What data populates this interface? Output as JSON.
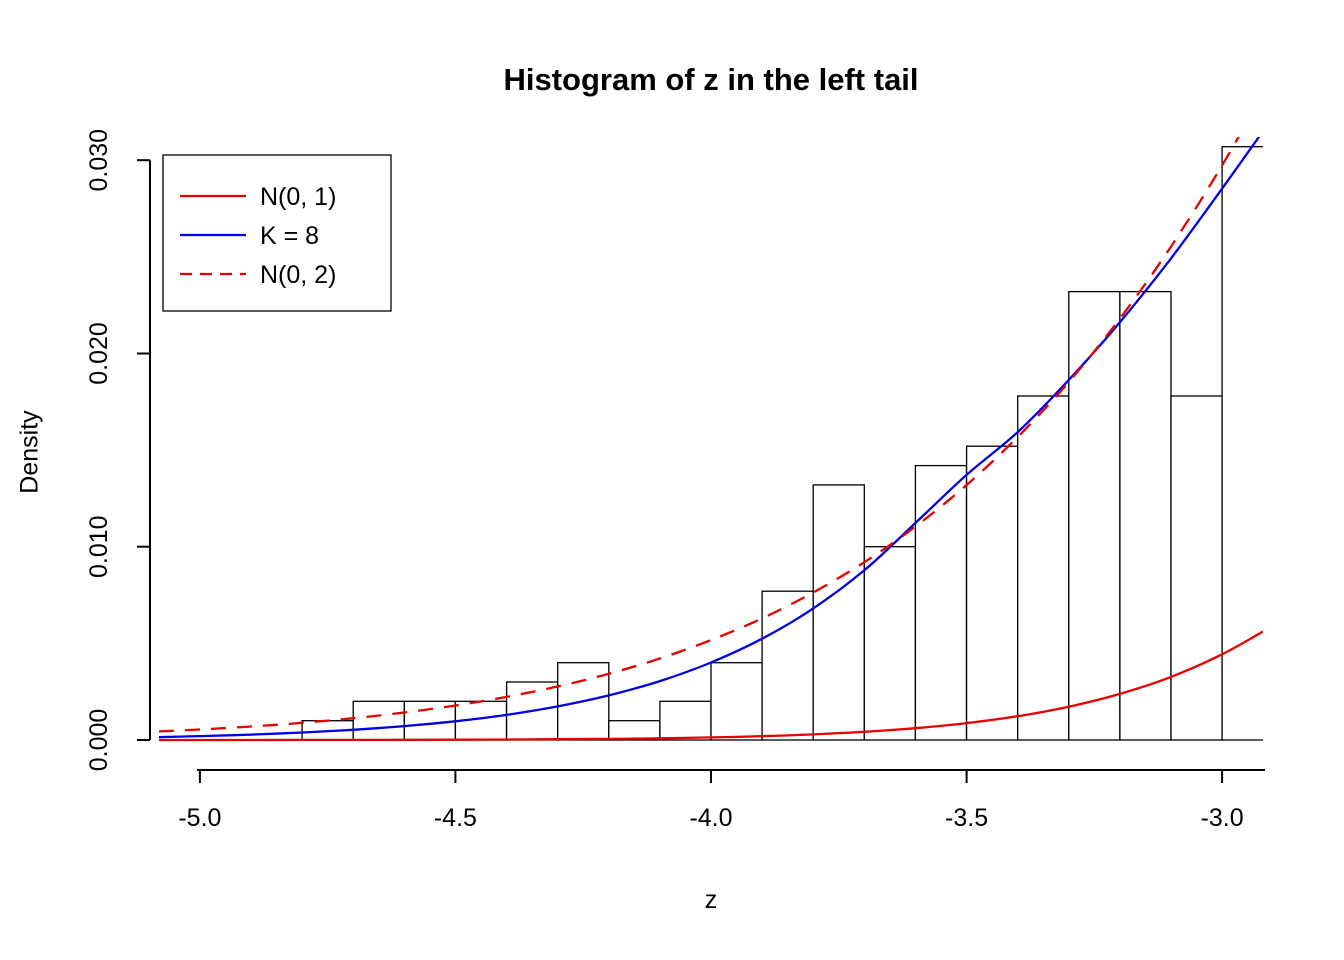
{
  "chart_data": {
    "type": "bar",
    "subtype": "histogram-with-density-curves",
    "title": "Histogram of z in the left tail",
    "xlabel": "z",
    "ylabel": "Density",
    "xlim": [
      -5.08,
      -2.92
    ],
    "ylim": [
      0,
      0.0312
    ],
    "x_ticks": [
      -5.0,
      -4.5,
      -4.0,
      -3.5,
      -3.0
    ],
    "x_tick_labels": [
      "-5.0",
      "-4.5",
      "-4.0",
      "-3.5",
      "-3.0"
    ],
    "y_ticks": [
      0.0,
      0.01,
      0.02,
      0.03
    ],
    "y_tick_labels": [
      "0.000",
      "0.010",
      "0.020",
      "0.030"
    ],
    "grid": "off",
    "histogram": {
      "bin_start": -4.8,
      "bin_width": 0.1,
      "densities": [
        0.001,
        0.002,
        0.002,
        0.002,
        0.003,
        0.004,
        0.001,
        0.002,
        0.004,
        0.0077,
        0.0132,
        0.01,
        0.0142,
        0.0152,
        0.0178,
        0.0232,
        0.0232,
        0.0178,
        0.0307
      ],
      "bar_fill": "#ffffff",
      "bar_stroke": "#000000"
    },
    "series": [
      {
        "name": "N(0, 1)",
        "color": "#e60000",
        "dash": "solid",
        "x": [
          -5.08,
          -5.0,
          -4.9,
          -4.8,
          -4.7,
          -4.6,
          -4.5,
          -4.4,
          -4.3,
          -4.2,
          -4.1,
          -4.0,
          -3.9,
          -3.8,
          -3.7,
          -3.6,
          -3.5,
          -3.4,
          -3.3,
          -3.2,
          -3.1,
          -3.0,
          -2.92
        ],
        "y": [
          1e-06,
          1.5e-06,
          2.4e-06,
          4e-06,
          6.4e-06,
          1e-05,
          1.6e-05,
          2.5e-05,
          3.9e-05,
          5.9e-05,
          8.9e-05,
          0.000134,
          0.000198,
          0.000292,
          0.000424,
          0.000612,
          0.000873,
          0.001231,
          0.001722,
          0.002384,
          0.003267,
          0.004432,
          0.005616
        ]
      },
      {
        "name": "K = 8",
        "color": "#0000e6",
        "dash": "solid",
        "x": [
          -5.08,
          -5.0,
          -4.9,
          -4.8,
          -4.7,
          -4.6,
          -4.5,
          -4.4,
          -4.3,
          -4.2,
          -4.1,
          -4.0,
          -3.9,
          -3.8,
          -3.7,
          -3.6,
          -3.5,
          -3.4,
          -3.3,
          -3.2,
          -3.1,
          -3.0,
          -2.92
        ],
        "y": [
          0.00015,
          0.0002,
          0.00028,
          0.00039,
          0.00053,
          0.00072,
          0.00097,
          0.0013,
          0.00174,
          0.00231,
          0.00305,
          0.00401,
          0.00524,
          0.00681,
          0.00878,
          0.01123,
          0.01372,
          0.01593,
          0.01863,
          0.02162,
          0.02492,
          0.02853,
          0.0315
        ]
      },
      {
        "name": "N(0, 2)",
        "color": "#e60000",
        "dash": "dashed",
        "x": [
          -5.08,
          -5.0,
          -4.9,
          -4.8,
          -4.7,
          -4.6,
          -4.5,
          -4.4,
          -4.3,
          -4.2,
          -4.1,
          -4.0,
          -3.9,
          -3.8,
          -3.7,
          -3.6,
          -3.5,
          -3.4,
          -3.3,
          -3.2,
          -3.1,
          -3.0,
          -2.92
        ],
        "y": [
          0.000445,
          0.000545,
          0.000697,
          0.000889,
          0.001126,
          0.001424,
          0.001786,
          0.002231,
          0.002771,
          0.003425,
          0.004217,
          0.005167,
          0.006294,
          0.007634,
          0.009202,
          0.011047,
          0.013194,
          0.015679,
          0.018525,
          0.021806,
          0.02553,
          0.029733,
          0.033473
        ]
      }
    ],
    "legend": {
      "position": "topleft",
      "entries": [
        {
          "label": "N(0, 1)",
          "color": "#e60000",
          "dash": "solid"
        },
        {
          "label": "K = 8",
          "color": "#0000e6",
          "dash": "solid"
        },
        {
          "label": "N(0, 2)",
          "color": "#e60000",
          "dash": "dashed"
        }
      ]
    },
    "axis_color": "#000000",
    "text_color": "#000000"
  }
}
